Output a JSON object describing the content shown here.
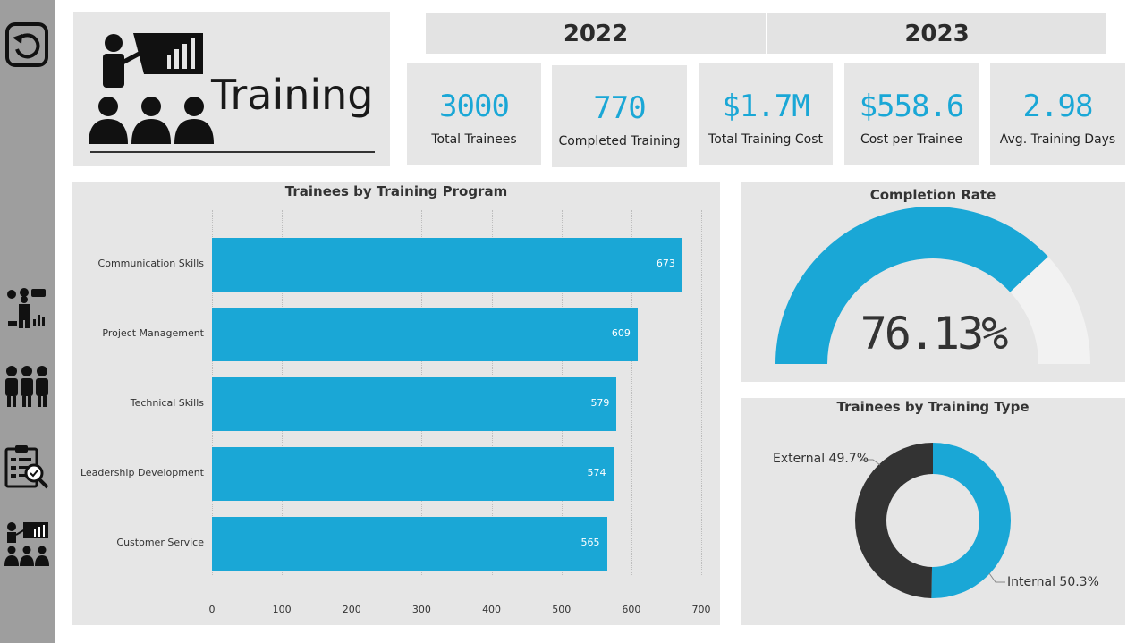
{
  "header": {
    "title": "Training"
  },
  "years": [
    "2022",
    "2023"
  ],
  "kpis": [
    {
      "value": "3000",
      "label": "Total Trainees"
    },
    {
      "value": "770",
      "label": "Completed Training"
    },
    {
      "value": "$1.7M",
      "label": "Total Training Cost"
    },
    {
      "value": "$558.6",
      "label": "Cost per Trainee"
    },
    {
      "value": "2.98",
      "label": "Avg. Training Days"
    }
  ],
  "colors": {
    "accent": "#1aa7d6",
    "dark": "#333333",
    "panel": "#e6e6e6",
    "sidebar": "#9e9e9e",
    "gauge_rest": "#f2f2f2"
  },
  "sidebar_icons": [
    "back-icon",
    "skills-presentation-icon",
    "team-icon",
    "evaluation-clipboard-icon",
    "training-presentation-icon"
  ],
  "chart_data": [
    {
      "type": "bar",
      "orientation": "horizontal",
      "title": "Trainees by Training Program",
      "categories": [
        "Communication Skills",
        "Project Management",
        "Technical Skills",
        "Leadership Development",
        "Customer Service"
      ],
      "values": [
        673,
        609,
        579,
        574,
        565
      ],
      "xlim": [
        0,
        700
      ],
      "xticks": [
        0,
        100,
        200,
        300,
        400,
        500,
        600,
        700
      ],
      "grid": true
    },
    {
      "type": "gauge",
      "title": "Completion Rate",
      "value": 76.13,
      "value_label": "76.13%",
      "range": [
        0,
        100
      ]
    },
    {
      "type": "pie",
      "variant": "donut",
      "title": "Trainees by Training Type",
      "categories": [
        "External",
        "Internal"
      ],
      "values": [
        49.7,
        50.3
      ],
      "labels": [
        "External 49.7%",
        "Internal 50.3%"
      ],
      "colors": [
        "#333333",
        "#1aa7d6"
      ]
    }
  ]
}
